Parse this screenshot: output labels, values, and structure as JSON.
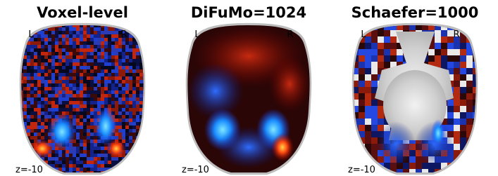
{
  "panels": [
    {
      "title": "Voxel-level",
      "left": "L",
      "right": "R",
      "slice": "z=-10"
    },
    {
      "title": "DiFuMo=1024",
      "left": "L",
      "right": "R",
      "slice": "z=-10"
    },
    {
      "title": "Schaefer=1000",
      "left": "L",
      "right": "R",
      "slice": "z=-10"
    }
  ]
}
